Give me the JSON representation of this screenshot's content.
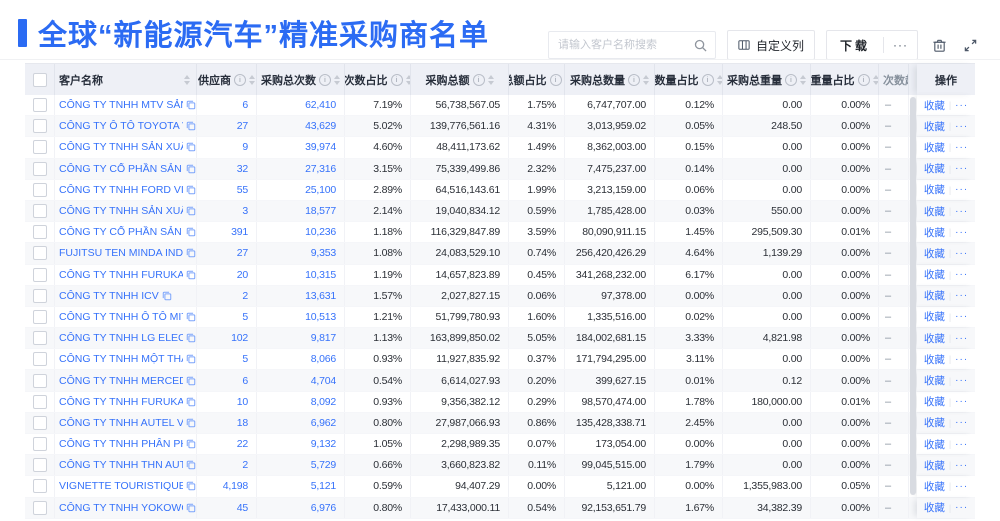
{
  "title": {
    "text": "全球“新能源汽车”精准采购商名单"
  },
  "colors": {
    "accent": "#2b6bf3",
    "link": "#3672fa",
    "header_bg": "#eef0f6"
  },
  "toolbar": {
    "search_placeholder": "请输入客户名称搜索",
    "customize_button": "自定义列",
    "download_button": "下载",
    "download_more_button": "···"
  },
  "table": {
    "columns": [
      {
        "key": "name",
        "label": "客户名称",
        "info": false,
        "sort": true
      },
      {
        "key": "supplier",
        "label": "供应商",
        "info": true,
        "sort": true
      },
      {
        "key": "times",
        "label": "采购总次数",
        "info": true,
        "sort": true
      },
      {
        "key": "times_pct",
        "label": "次数占比",
        "info": true,
        "sort": true
      },
      {
        "key": "amount",
        "label": "采购总额",
        "info": true,
        "sort": true
      },
      {
        "key": "amount_pct",
        "label": "总额占比",
        "info": true,
        "sort": true
      },
      {
        "key": "qty",
        "label": "采购总数量",
        "info": true,
        "sort": true
      },
      {
        "key": "qty_pct",
        "label": "数量占比",
        "info": true,
        "sort": true
      },
      {
        "key": "weight",
        "label": "采购总重量",
        "info": true,
        "sort": true
      },
      {
        "key": "weight_pct",
        "label": "重量占比",
        "info": true,
        "sort": true
      },
      {
        "key": "trend",
        "label": "次数趋势",
        "info": false,
        "sort": false
      },
      {
        "key": "action",
        "label": "操作",
        "info": false,
        "sort": false
      }
    ],
    "actions": {
      "favorite": "收藏",
      "more": "···"
    },
    "trend_placeholder": "–",
    "rows": [
      {
        "name": "CÔNG TY TNHH MTV SẢN XUẤ...",
        "supplier": "6",
        "times": "62,410",
        "times_pct": "7.19%",
        "amount": "56,738,567.05",
        "amount_pct": "1.75%",
        "qty": "6,747,707.00",
        "qty_pct": "0.12%",
        "weight": "0.00",
        "weight_pct": "0.00%"
      },
      {
        "name": "CÔNG TY Ô TÔ TOYOTA VIỆT ...",
        "supplier": "27",
        "times": "43,629",
        "times_pct": "5.02%",
        "amount": "139,776,561.16",
        "amount_pct": "4.31%",
        "qty": "3,013,959.02",
        "qty_pct": "0.05%",
        "weight": "248.50",
        "weight_pct": "0.00%"
      },
      {
        "name": "CÔNG TY TNHH SẢN XUẤT VÀ ...",
        "supplier": "9",
        "times": "39,974",
        "times_pct": "4.60%",
        "amount": "48,411,173.62",
        "amount_pct": "1.49%",
        "qty": "8,362,003.00",
        "qty_pct": "0.15%",
        "weight": "0.00",
        "weight_pct": "0.00%"
      },
      {
        "name": "CÔNG TY CỔ PHẦN SẢN XUẤT...",
        "supplier": "32",
        "times": "27,316",
        "times_pct": "3.15%",
        "amount": "75,339,499.86",
        "amount_pct": "2.32%",
        "qty": "7,475,237.00",
        "qty_pct": "0.14%",
        "weight": "0.00",
        "weight_pct": "0.00%"
      },
      {
        "name": "CÔNG TY TNHH FORD VIỆT NAM",
        "supplier": "55",
        "times": "25,100",
        "times_pct": "2.89%",
        "amount": "64,516,143.61",
        "amount_pct": "1.99%",
        "qty": "3,213,159.00",
        "qty_pct": "0.06%",
        "weight": "0.00",
        "weight_pct": "0.00%"
      },
      {
        "name": "CÔNG TY TNHH SẢN XUẤT VÀ ...",
        "supplier": "3",
        "times": "18,577",
        "times_pct": "2.14%",
        "amount": "19,040,834.12",
        "amount_pct": "0.59%",
        "qty": "1,785,428.00",
        "qty_pct": "0.03%",
        "weight": "550.00",
        "weight_pct": "0.00%"
      },
      {
        "name": "CÔNG TY CỔ PHẦN SẢN XUẤT...",
        "supplier": "391",
        "times": "10,236",
        "times_pct": "1.18%",
        "amount": "116,329,847.89",
        "amount_pct": "3.59%",
        "qty": "80,090,911.15",
        "qty_pct": "1.45%",
        "weight": "295,509.30",
        "weight_pct": "0.01%"
      },
      {
        "name": "FUJITSU TEN MINDA INDIA PVT...",
        "supplier": "27",
        "times": "9,353",
        "times_pct": "1.08%",
        "amount": "24,083,529.10",
        "amount_pct": "0.74%",
        "qty": "256,420,426.29",
        "qty_pct": "4.64%",
        "weight": "1,139.29",
        "weight_pct": "0.00%"
      },
      {
        "name": "CÔNG TY TNHH FURUKAWA A...",
        "supplier": "20",
        "times": "10,315",
        "times_pct": "1.19%",
        "amount": "14,657,823.89",
        "amount_pct": "0.45%",
        "qty": "341,268,232.00",
        "qty_pct": "6.17%",
        "weight": "0.00",
        "weight_pct": "0.00%"
      },
      {
        "name": "CÔNG TY TNHH ICV",
        "supplier": "2",
        "times": "13,631",
        "times_pct": "1.57%",
        "amount": "2,027,827.15",
        "amount_pct": "0.06%",
        "qty": "97,378.00",
        "qty_pct": "0.00%",
        "weight": "0.00",
        "weight_pct": "0.00%"
      },
      {
        "name": "CÔNG TY TNHH Ô TÔ MITSUBI...",
        "supplier": "5",
        "times": "10,513",
        "times_pct": "1.21%",
        "amount": "51,799,780.93",
        "amount_pct": "1.60%",
        "qty": "1,335,516.00",
        "qty_pct": "0.02%",
        "weight": "0.00",
        "weight_pct": "0.00%"
      },
      {
        "name": "CÔNG TY TNHH LG ELECTRON...",
        "supplier": "102",
        "times": "9,817",
        "times_pct": "1.13%",
        "amount": "163,899,850.02",
        "amount_pct": "5.05%",
        "qty": "184,002,681.15",
        "qty_pct": "3.33%",
        "weight": "4,821.98",
        "weight_pct": "0.00%"
      },
      {
        "name": "CÔNG TY TNHH MỘT THÀNH V...",
        "supplier": "5",
        "times": "8,066",
        "times_pct": "0.93%",
        "amount": "11,927,835.92",
        "amount_pct": "0.37%",
        "qty": "171,794,295.00",
        "qty_pct": "3.11%",
        "weight": "0.00",
        "weight_pct": "0.00%"
      },
      {
        "name": "CÔNG TY TNHH MERCEDES–B...",
        "supplier": "6",
        "times": "4,704",
        "times_pct": "0.54%",
        "amount": "6,614,027.93",
        "amount_pct": "0.20%",
        "qty": "399,627.15",
        "qty_pct": "0.01%",
        "weight": "0.12",
        "weight_pct": "0.00%"
      },
      {
        "name": "CÔNG TY TNHH FURUKAWA A...",
        "supplier": "10",
        "times": "8,092",
        "times_pct": "0.93%",
        "amount": "9,356,382.12",
        "amount_pct": "0.29%",
        "qty": "98,570,474.00",
        "qty_pct": "1.78%",
        "weight": "180,000.00",
        "weight_pct": "0.01%"
      },
      {
        "name": "CÔNG TY TNHH AUTEL VIỆT N...",
        "supplier": "18",
        "times": "6,962",
        "times_pct": "0.80%",
        "amount": "27,987,066.93",
        "amount_pct": "0.86%",
        "qty": "135,428,338.71",
        "qty_pct": "2.45%",
        "weight": "0.00",
        "weight_pct": "0.00%"
      },
      {
        "name": "CÔNG TY TNHH PHÂN PHỐI T...",
        "supplier": "22",
        "times": "9,132",
        "times_pct": "1.05%",
        "amount": "2,298,989.35",
        "amount_pct": "0.07%",
        "qty": "173,054.00",
        "qty_pct": "0.00%",
        "weight": "0.00",
        "weight_pct": "0.00%"
      },
      {
        "name": "CÔNG TY TNHH THN AUTOPAR...",
        "supplier": "2",
        "times": "5,729",
        "times_pct": "0.66%",
        "amount": "3,660,823.82",
        "amount_pct": "0.11%",
        "qty": "99,045,515.00",
        "qty_pct": "1.79%",
        "weight": "0.00",
        "weight_pct": "0.00%"
      },
      {
        "name": "VIGNETTE TOURISTIQUE G UNI...",
        "supplier": "4,198",
        "times": "5,121",
        "times_pct": "0.59%",
        "amount": "94,407.29",
        "amount_pct": "0.00%",
        "qty": "5,121.00",
        "qty_pct": "0.00%",
        "weight": "1,355,983.00",
        "weight_pct": "0.05%"
      },
      {
        "name": "CÔNG TY TNHH YOKOWO VIỆT...",
        "supplier": "45",
        "times": "6,976",
        "times_pct": "0.80%",
        "amount": "17,433,000.11",
        "amount_pct": "0.54%",
        "qty": "92,153,651.79",
        "qty_pct": "1.67%",
        "weight": "34,382.39",
        "weight_pct": "0.00%"
      }
    ]
  }
}
